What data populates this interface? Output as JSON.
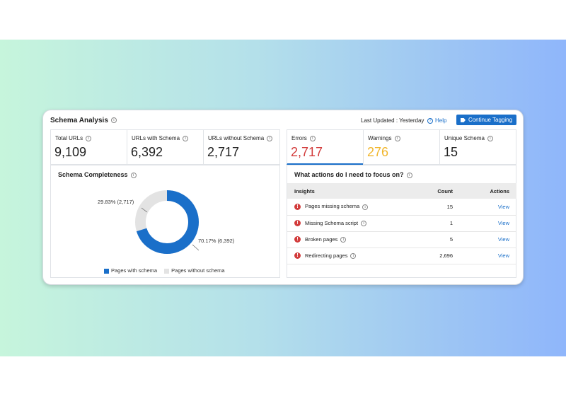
{
  "header": {
    "title": "Schema Analysis",
    "last_updated": "Last Updated : Yesterday",
    "help_label": "Help",
    "cta_label": "Continue Tagging"
  },
  "stats_left": [
    {
      "label": "Total URLs",
      "value": "9,109"
    },
    {
      "label": "URLs with Schema",
      "value": "6,392"
    },
    {
      "label": "URLs without Schema",
      "value": "2,717"
    }
  ],
  "stats_right": [
    {
      "label": "Errors",
      "value": "2,717",
      "color": "#d23b3b",
      "selected": true
    },
    {
      "label": "Warnings",
      "value": "276",
      "color": "#f1b62c",
      "selected": false
    },
    {
      "label": "Unique Schema",
      "value": "15",
      "color": "#222222",
      "selected": false
    }
  ],
  "completeness": {
    "title": "Schema Completeness",
    "without_label": "29.83% (2,717)",
    "with_label": "70.17% (6,392)",
    "with_fraction": 0.7017,
    "with_color": "#1a6fc9",
    "without_color": "#e3e3e3",
    "legend_with": "Pages with schema",
    "legend_without": "Pages without schema"
  },
  "actions": {
    "title": "What actions do I need to focus on?",
    "col_insights": "Insights",
    "col_count": "Count",
    "col_actions": "Actions",
    "rows": [
      {
        "insight": "Pages missing schema",
        "count": "15",
        "action": "View"
      },
      {
        "insight": "Missing Schema script",
        "count": "1",
        "action": "View"
      },
      {
        "insight": "Broken pages",
        "count": "5",
        "action": "View"
      },
      {
        "insight": "Redirecting pages",
        "count": "2,696",
        "action": "View"
      }
    ]
  }
}
